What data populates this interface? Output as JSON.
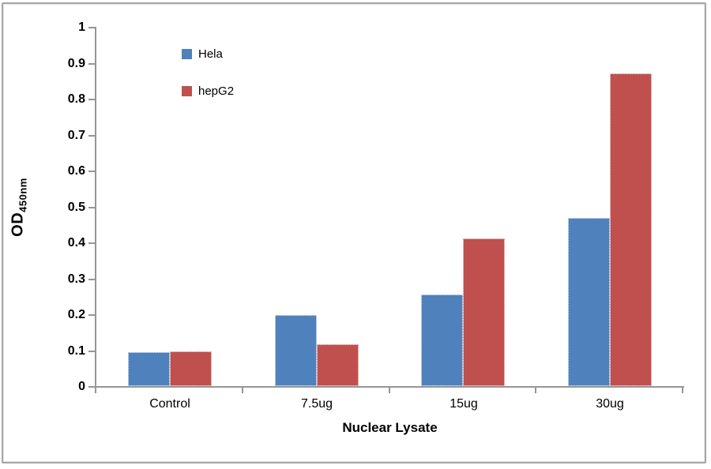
{
  "figure": {
    "background": "#FFFFFF",
    "border_color": "#A6A6A6"
  },
  "chart_data": {
    "type": "bar",
    "title": "",
    "categories": [
      "Control",
      "7.5ug",
      "15ug",
      "30ug"
    ],
    "series": [
      {
        "name": "Hela",
        "color": "#4F81BD",
        "values": [
          0.095,
          0.198,
          0.255,
          0.468
        ]
      },
      {
        "name": "hepG2",
        "color": "#C0504D",
        "values": [
          0.097,
          0.117,
          0.41,
          0.87
        ]
      }
    ],
    "xlabel": "Nuclear Lysate",
    "ylabel": "OD",
    "ylabel_subscript": "450nm",
    "ylim": [
      0,
      1
    ],
    "ytick_step": 0.1,
    "ytick_labels": [
      "0",
      "0.1",
      "0.2",
      "0.3",
      "0.4",
      "0.5",
      "0.6",
      "0.7",
      "0.8",
      "0.9",
      "1"
    ],
    "grid": false,
    "legend": {
      "position": "inside-top-left",
      "entries": [
        "Hela",
        "hepG2"
      ]
    },
    "axis_color": "#969696",
    "text_color": "#000000"
  }
}
